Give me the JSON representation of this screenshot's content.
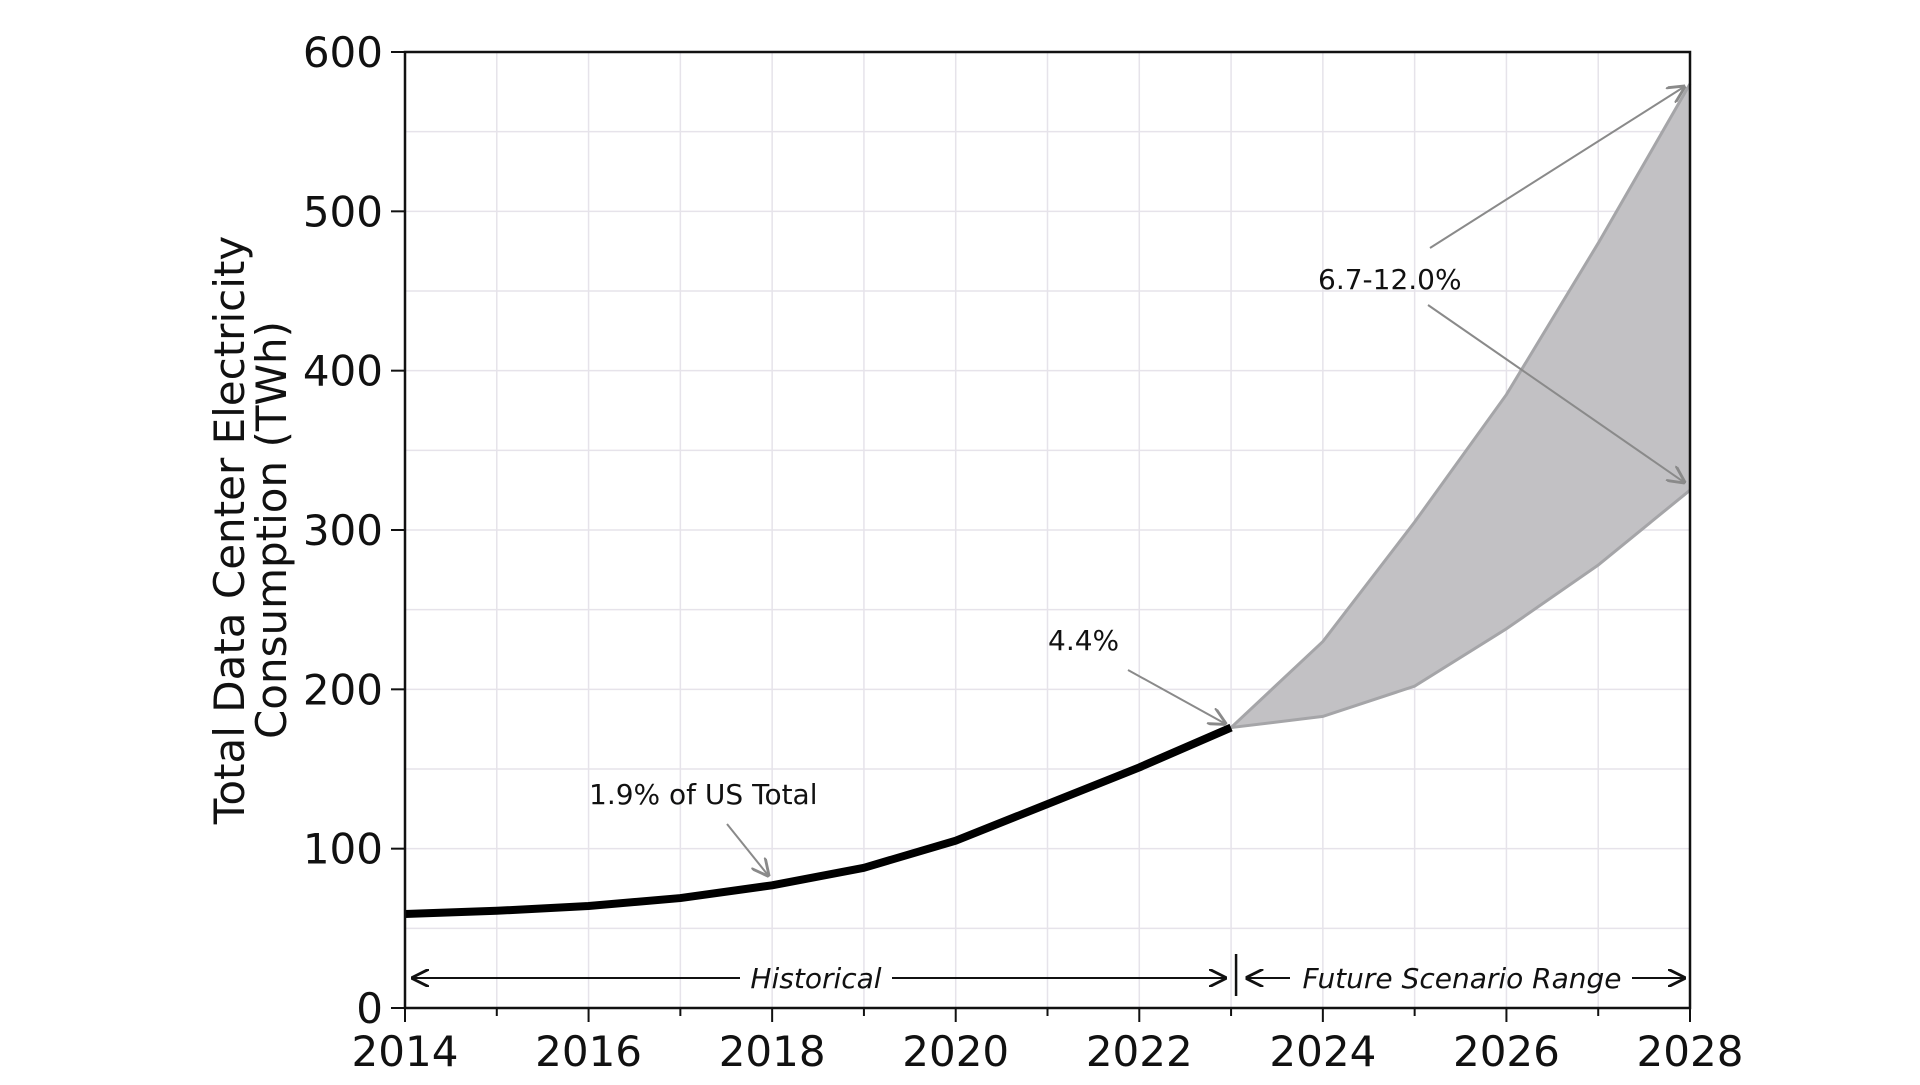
{
  "chart_data": {
    "type": "line",
    "x": [
      2014,
      2015,
      2016,
      2017,
      2018,
      2019,
      2020,
      2021,
      2022,
      2023
    ],
    "series": [
      {
        "values": [
          59,
          61,
          64,
          69,
          77,
          88,
          105,
          128,
          151,
          176
        ]
      }
    ],
    "range": {
      "x": [
        2023,
        2024,
        2025,
        2026,
        2027,
        2028
      ],
      "upper": [
        176,
        230,
        305,
        385,
        480,
        580
      ],
      "lower": [
        176,
        183,
        202,
        238,
        278,
        325
      ]
    },
    "xlim": [
      2014,
      2028
    ],
    "ylim": [
      0,
      600
    ],
    "x_ticks": [
      2014,
      2016,
      2018,
      2020,
      2022,
      2024,
      2026,
      2028
    ],
    "y_ticks": [
      0,
      100,
      200,
      300,
      400,
      500,
      600
    ],
    "ylabel_lines": [
      "Total Data Center Electricity",
      "Consumption (TWh)"
    ],
    "xlabel": "",
    "title": "",
    "grid": true,
    "annotations": {
      "hist_share": "1.9% of US Total",
      "current_share": "4.4%",
      "future_share": "6.7-12.0%",
      "historical": "Historical",
      "future": "Future Scenario Range"
    },
    "colors": {
      "line": "#000000",
      "range_fill": "#c2c1c4",
      "range_edge": "#a5a5a8",
      "grid": "#e6e3ea",
      "arrow": "#8a8a8a"
    }
  }
}
